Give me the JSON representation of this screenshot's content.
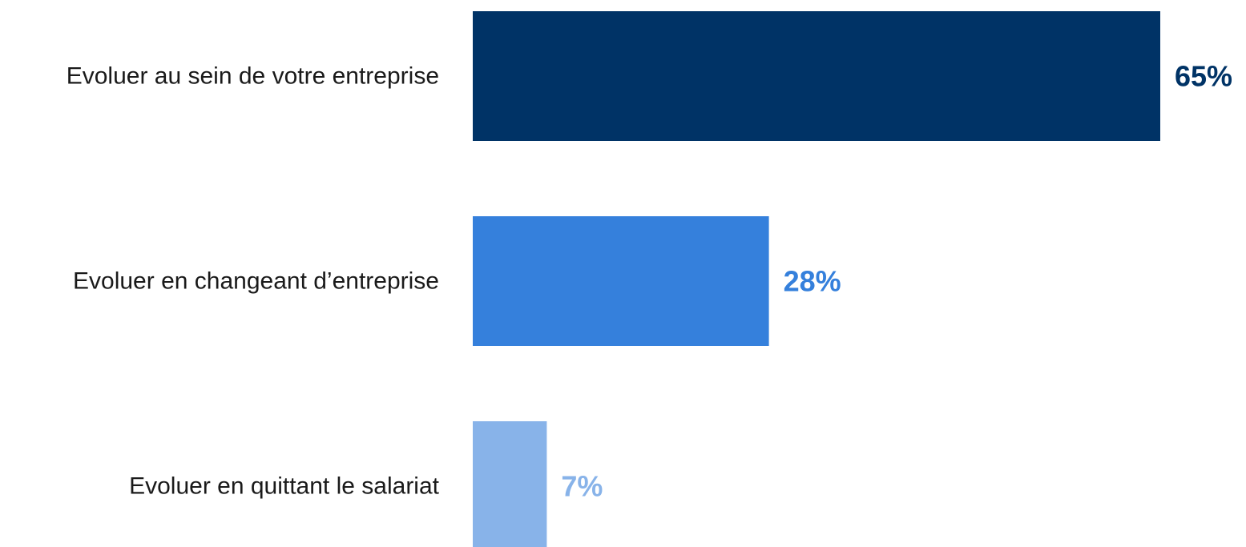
{
  "chart_data": {
    "type": "bar",
    "orientation": "horizontal",
    "categories": [
      "Evoluer au sein de votre entreprise",
      "Evoluer en changeant d’entreprise",
      "Evoluer en quittant le salariat"
    ],
    "values": [
      65,
      28,
      7
    ],
    "value_labels": [
      "65%",
      "28%",
      "7%"
    ],
    "colors": [
      "#003366",
      "#3580DC",
      "#88B3E9"
    ],
    "title": "",
    "xlabel": "",
    "ylabel": "",
    "xlim": [
      0,
      65
    ],
    "grid": false,
    "legend": "none"
  }
}
